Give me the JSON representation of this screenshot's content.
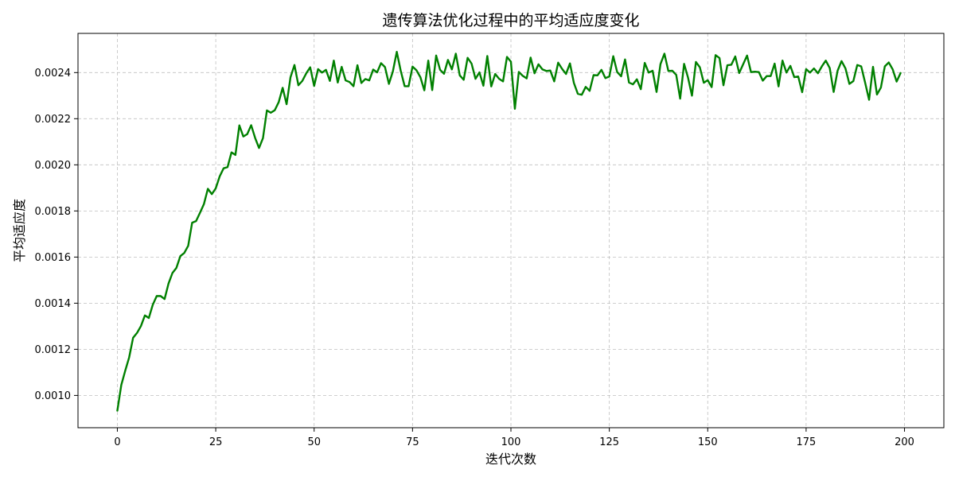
{
  "chart_data": {
    "type": "line",
    "title": "遗传算法优化过程中的平均适应度变化",
    "xlabel": "迭代次数",
    "ylabel": "平均适应度",
    "xlim": [
      -10,
      210
    ],
    "ylim": [
      0.00086,
      0.00257
    ],
    "x_ticks": [
      0,
      25,
      50,
      75,
      100,
      125,
      150,
      175,
      200
    ],
    "y_ticks": [
      0.001,
      0.0012,
      0.0014,
      0.0016,
      0.0018,
      0.002,
      0.0022,
      0.0024
    ],
    "grid": true,
    "series": [
      {
        "color": "#008000",
        "values": [
          0.000934,
          0.001045,
          0.001107,
          0.001165,
          0.00125,
          0.001271,
          0.001301,
          0.001347,
          0.001336,
          0.001393,
          0.001431,
          0.001431,
          0.001418,
          0.001485,
          0.001531,
          0.001553,
          0.001604,
          0.001618,
          0.001649,
          0.001749,
          0.001756,
          0.001792,
          0.00183,
          0.001896,
          0.001873,
          0.001898,
          0.00195,
          0.001985,
          0.00199,
          0.002054,
          0.002043,
          0.002171,
          0.002123,
          0.002133,
          0.002172,
          0.002117,
          0.002073,
          0.002116,
          0.002236,
          0.002226,
          0.002237,
          0.002272,
          0.002334,
          0.002263,
          0.00238,
          0.002433,
          0.002345,
          0.002364,
          0.002397,
          0.002423,
          0.002342,
          0.002415,
          0.0024,
          0.002412,
          0.002364,
          0.002452,
          0.002357,
          0.002425,
          0.002366,
          0.002359,
          0.002341,
          0.002432,
          0.002355,
          0.002372,
          0.002366,
          0.002413,
          0.002401,
          0.002441,
          0.002424,
          0.002351,
          0.002405,
          0.00249,
          0.002408,
          0.002341,
          0.002341,
          0.002426,
          0.00241,
          0.00238,
          0.002323,
          0.002452,
          0.002324,
          0.002474,
          0.002412,
          0.002395,
          0.002455,
          0.002414,
          0.002482,
          0.002388,
          0.002369,
          0.002464,
          0.002439,
          0.002373,
          0.002401,
          0.002343,
          0.002472,
          0.00234,
          0.002394,
          0.002373,
          0.002362,
          0.002468,
          0.002447,
          0.002243,
          0.002403,
          0.002386,
          0.002375,
          0.002465,
          0.002397,
          0.002436,
          0.002414,
          0.002407,
          0.002409,
          0.002362,
          0.002443,
          0.002416,
          0.002394,
          0.00244,
          0.002355,
          0.002308,
          0.002304,
          0.002338,
          0.002321,
          0.002389,
          0.002388,
          0.002412,
          0.002376,
          0.002383,
          0.002471,
          0.002402,
          0.002384,
          0.002457,
          0.002357,
          0.002349,
          0.002371,
          0.002328,
          0.002442,
          0.0024,
          0.002408,
          0.002316,
          0.002437,
          0.002482,
          0.002407,
          0.002408,
          0.00239,
          0.002287,
          0.002438,
          0.002378,
          0.0023,
          0.002446,
          0.002423,
          0.002356,
          0.002367,
          0.002337,
          0.002476,
          0.002463,
          0.002345,
          0.002432,
          0.002434,
          0.00247,
          0.002398,
          0.002436,
          0.002474,
          0.002402,
          0.002404,
          0.002402,
          0.002365,
          0.002385,
          0.002385,
          0.002439,
          0.00234,
          0.002452,
          0.0024,
          0.002429,
          0.00238,
          0.002383,
          0.002315,
          0.002415,
          0.0024,
          0.002418,
          0.002397,
          0.002427,
          0.002452,
          0.00242,
          0.002316,
          0.002408,
          0.00245,
          0.002418,
          0.002351,
          0.002363,
          0.002433,
          0.002427,
          0.002356,
          0.002282,
          0.002425,
          0.002305,
          0.002335,
          0.002427,
          0.002444,
          0.002414,
          0.002361,
          0.002398
        ]
      }
    ]
  }
}
